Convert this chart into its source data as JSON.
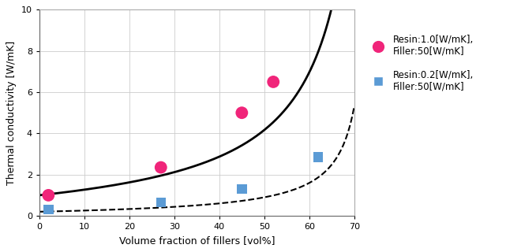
{
  "xlabel": "Volume fraction of fillers [vol%]",
  "ylabel": "Thermal conductivity [W/mK]",
  "xlim": [
    0,
    70
  ],
  "ylim": [
    0,
    10
  ],
  "xticks": [
    0,
    10,
    20,
    30,
    40,
    50,
    60,
    70
  ],
  "yticks": [
    0,
    2,
    4,
    6,
    8,
    10
  ],
  "pink_scatter_x": [
    2,
    27,
    45,
    52
  ],
  "pink_scatter_y": [
    1.0,
    2.35,
    5.0,
    6.5
  ],
  "blue_scatter_x": [
    2,
    27,
    45,
    62
  ],
  "blue_scatter_y": [
    0.3,
    0.65,
    1.3,
    2.85
  ],
  "pink_color": "#F0257A",
  "blue_color": "#5B9BD5",
  "legend_pink_label": "Resin:1.0[W/mK],\nFiller:50[W/mK]",
  "legend_blue_label": "Resin:0.2[W/mK],\nFiller:50[W/mK]",
  "curve_color": "#000000",
  "grid_color": "#cccccc",
  "background_color": "#ffffff",
  "figsize": [
    6.6,
    3.2
  ],
  "dpi": 100,
  "km_solid": 1.0,
  "km_dashed": 0.2,
  "kf": 50.0,
  "phi_max": 0.637
}
